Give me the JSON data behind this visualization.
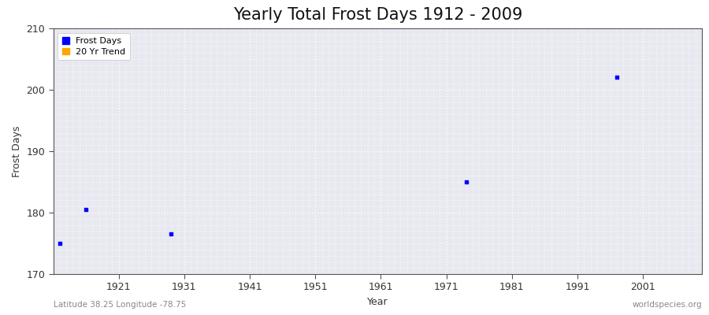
{
  "title": "Yearly Total Frost Days 1912 - 2009",
  "xlabel": "Year",
  "ylabel": "Frost Days",
  "subtitle_left": "Latitude 38.25 Longitude -78.75",
  "subtitle_right": "worldspecies.org",
  "xlim": [
    1911,
    2010
  ],
  "ylim": [
    170,
    210
  ],
  "yticks": [
    170,
    180,
    190,
    200,
    210
  ],
  "xticks": [
    1921,
    1931,
    1941,
    1951,
    1961,
    1971,
    1981,
    1991,
    2001
  ],
  "data_points": [
    {
      "year": 1912,
      "value": 175.0
    },
    {
      "year": 1916,
      "value": 180.5
    },
    {
      "year": 1929,
      "value": 176.5
    },
    {
      "year": 1974,
      "value": 185.0
    },
    {
      "year": 1997,
      "value": 202.0
    }
  ],
  "point_color": "#0000ff",
  "point_size": 6,
  "background_color": "#e8e8f0",
  "grid_color": "#ffffff",
  "legend_frost_color": "#0000ff",
  "legend_trend_color": "#ffa500",
  "title_fontsize": 15,
  "axis_label_fontsize": 9,
  "tick_label_fontsize": 9,
  "subtitle_fontsize": 7.5,
  "legend_fontsize": 8
}
